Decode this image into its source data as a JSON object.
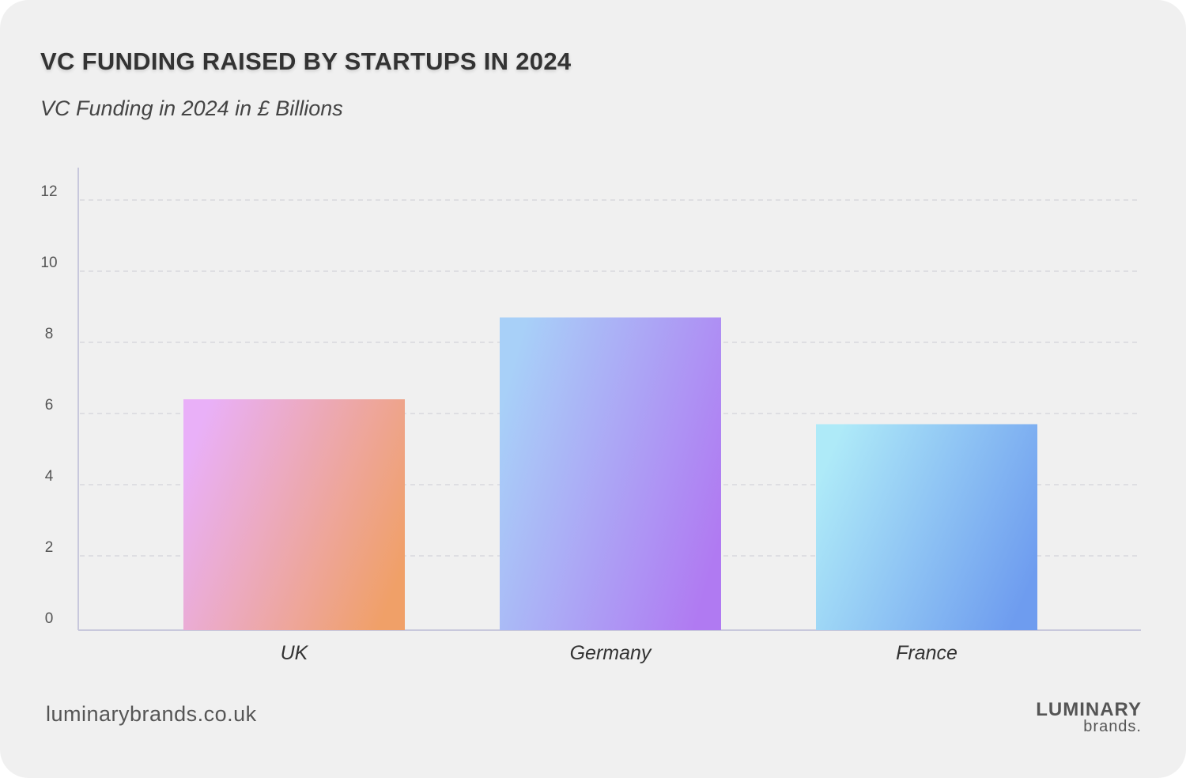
{
  "chart_data": {
    "type": "bar",
    "title": "VC FUNDING RAISED BY STARTUPS IN 2024",
    "subtitle": "VC Funding in 2024 in  £ Billions",
    "categories": [
      "UK",
      "Germany",
      "France"
    ],
    "values": [
      6.4,
      8.7,
      5.7
    ],
    "ylim": [
      0,
      13
    ],
    "yticks": [
      "0",
      "2",
      "4",
      "6",
      "8",
      "10",
      "12"
    ],
    "grid": true,
    "bar_gradients": [
      [
        "#e9b0f8",
        "#f0a068"
      ],
      [
        "#a8d0f8",
        "#b07af2"
      ],
      [
        "#aeeaf8",
        "#6e9cef"
      ]
    ]
  },
  "footer": {
    "url": "luminarybrands.co.uk",
    "logo_line1": "LUMINARY",
    "logo_line2": "brands."
  }
}
